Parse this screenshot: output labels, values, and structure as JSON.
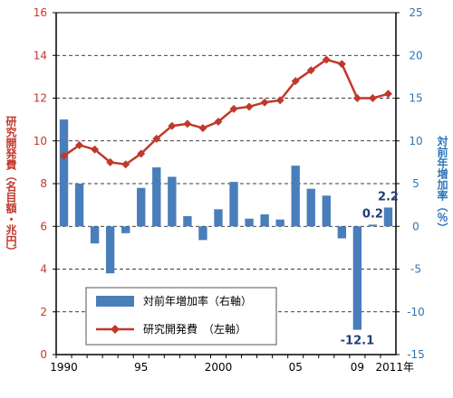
{
  "chart_data": {
    "type": "bar+line",
    "x": [
      "1990",
      "1991",
      "1992",
      "1993",
      "1994",
      "1995",
      "1996",
      "1997",
      "1998",
      "1999",
      "2000",
      "2001",
      "2002",
      "2003",
      "2004",
      "2005",
      "2006",
      "2007",
      "2008",
      "2009",
      "2010",
      "2011"
    ],
    "x_tick_labels": [
      "1990",
      "95",
      "2000",
      "05",
      "09",
      "2011年"
    ],
    "series": [
      {
        "name": "対前年増加率（右軸）",
        "type": "bar",
        "axis": "right",
        "color": "#4a7ebb",
        "values": [
          12.5,
          5.0,
          -2.0,
          -5.5,
          -0.8,
          4.5,
          6.9,
          5.8,
          1.2,
          -1.6,
          2.0,
          5.2,
          0.9,
          1.4,
          0.8,
          7.1,
          4.4,
          3.6,
          -1.4,
          -12.1,
          0.2,
          2.2
        ]
      },
      {
        "name": "研究開発費　（左軸）",
        "type": "line",
        "axis": "left",
        "color": "#c0392b",
        "values": [
          9.3,
          9.8,
          9.6,
          9.0,
          8.9,
          9.4,
          10.1,
          10.7,
          10.8,
          10.6,
          10.9,
          11.5,
          11.6,
          11.8,
          11.9,
          12.8,
          13.3,
          13.8,
          13.6,
          12.0,
          12.0,
          12.2
        ]
      }
    ],
    "y_left": {
      "label": "研究開発費（名目額・兆円）",
      "ylim": [
        0,
        16
      ],
      "ticks": [
        "0",
        "2",
        "4",
        "6",
        "8",
        "10",
        "12",
        "14",
        "16"
      ],
      "color": "#c0392b"
    },
    "y_right": {
      "label": "対前年増加率（％）",
      "ylim": [
        -15,
        25
      ],
      "ticks": [
        "-15",
        "-10",
        "-5",
        "0",
        "5",
        "10",
        "15",
        "20",
        "25"
      ],
      "color": "#2e75b6"
    },
    "data_labels": [
      {
        "x": "2009",
        "text": "-12.1"
      },
      {
        "x": "2010",
        "text": "0.2"
      },
      {
        "x": "2011",
        "text": "2.2"
      }
    ],
    "grid": "horizontal dashed",
    "legend_position": "bottom-center"
  }
}
